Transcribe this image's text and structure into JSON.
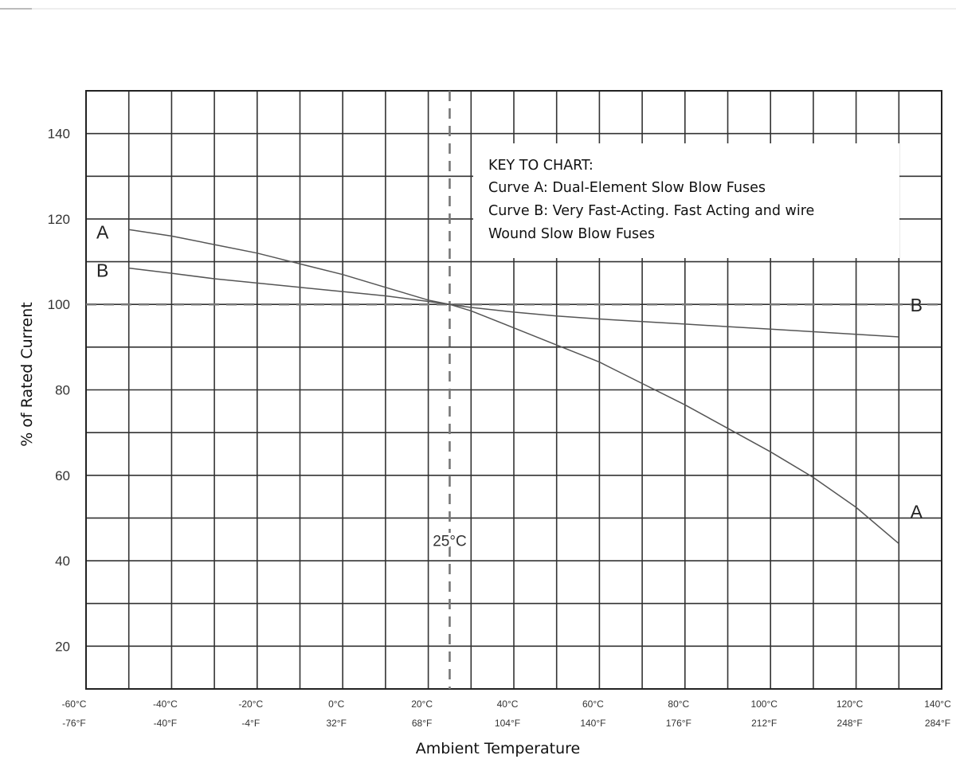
{
  "chart_data": {
    "type": "line",
    "ylabel": "% of Rated Current",
    "xlabel": "Ambient Temperature",
    "x_unit": "°C",
    "xlim": [
      -60,
      140
    ],
    "ylim": [
      10,
      150
    ],
    "y_ticks": [
      20,
      40,
      60,
      80,
      100,
      120,
      140
    ],
    "x_ticks": [
      {
        "c": -60,
        "celsius": "-60°C",
        "fahrenheit": "-76°F"
      },
      {
        "c": -40,
        "celsius": "-40°C",
        "fahrenheit": "-40°F"
      },
      {
        "c": -20,
        "celsius": "-20°C",
        "fahrenheit": "-4°F"
      },
      {
        "c": 0,
        "celsius": "0°C",
        "fahrenheit": "32°F"
      },
      {
        "c": 20,
        "celsius": "20°C",
        "fahrenheit": "68°F"
      },
      {
        "c": 40,
        "celsius": "40°C",
        "fahrenheit": "104°F"
      },
      {
        "c": 60,
        "celsius": "60°C",
        "fahrenheit": "140°F"
      },
      {
        "c": 80,
        "celsius": "80°C",
        "fahrenheit": "176°F"
      },
      {
        "c": 100,
        "celsius": "100°C",
        "fahrenheit": "212°F"
      },
      {
        "c": 120,
        "celsius": "120°C",
        "fahrenheit": "248°F"
      },
      {
        "c": 140,
        "celsius": "140°C",
        "fahrenheit": "284°F"
      }
    ],
    "grid": true,
    "reference_lines": {
      "horizontal": {
        "y": 100
      },
      "vertical": {
        "x": 25,
        "label": "25°C"
      }
    },
    "key": {
      "title": "KEY TO CHART:",
      "lines": [
        "Curve A: Dual-Element Slow Blow Fuses",
        "Curve B: Very Fast-Acting. Fast Acting and wire",
        "Wound Slow Blow Fuses"
      ]
    },
    "series": [
      {
        "name": "A",
        "start_label": "A",
        "end_label": "A",
        "x": [
          -50,
          -40,
          -30,
          -20,
          -10,
          0,
          10,
          20,
          25,
          30,
          40,
          50,
          60,
          70,
          80,
          90,
          100,
          110,
          120,
          130
        ],
        "y": [
          117.5,
          116,
          114,
          112,
          109.5,
          107,
          104,
          101,
          100,
          98.5,
          94.5,
          90.5,
          86.5,
          81.5,
          76.5,
          71,
          65.5,
          59.5,
          52.5,
          44
        ]
      },
      {
        "name": "B",
        "start_label": "B",
        "end_label": "B",
        "x": [
          -50,
          -40,
          -30,
          -20,
          -10,
          0,
          10,
          20,
          25,
          30,
          40,
          50,
          60,
          70,
          80,
          90,
          100,
          110,
          120,
          130
        ],
        "y": [
          108.5,
          107.3,
          106,
          105,
          104,
          103,
          102,
          100.7,
          100,
          99.3,
          98.2,
          97.3,
          96.6,
          96,
          95.4,
          94.8,
          94.2,
          93.6,
          93,
          92.4
        ]
      }
    ]
  }
}
